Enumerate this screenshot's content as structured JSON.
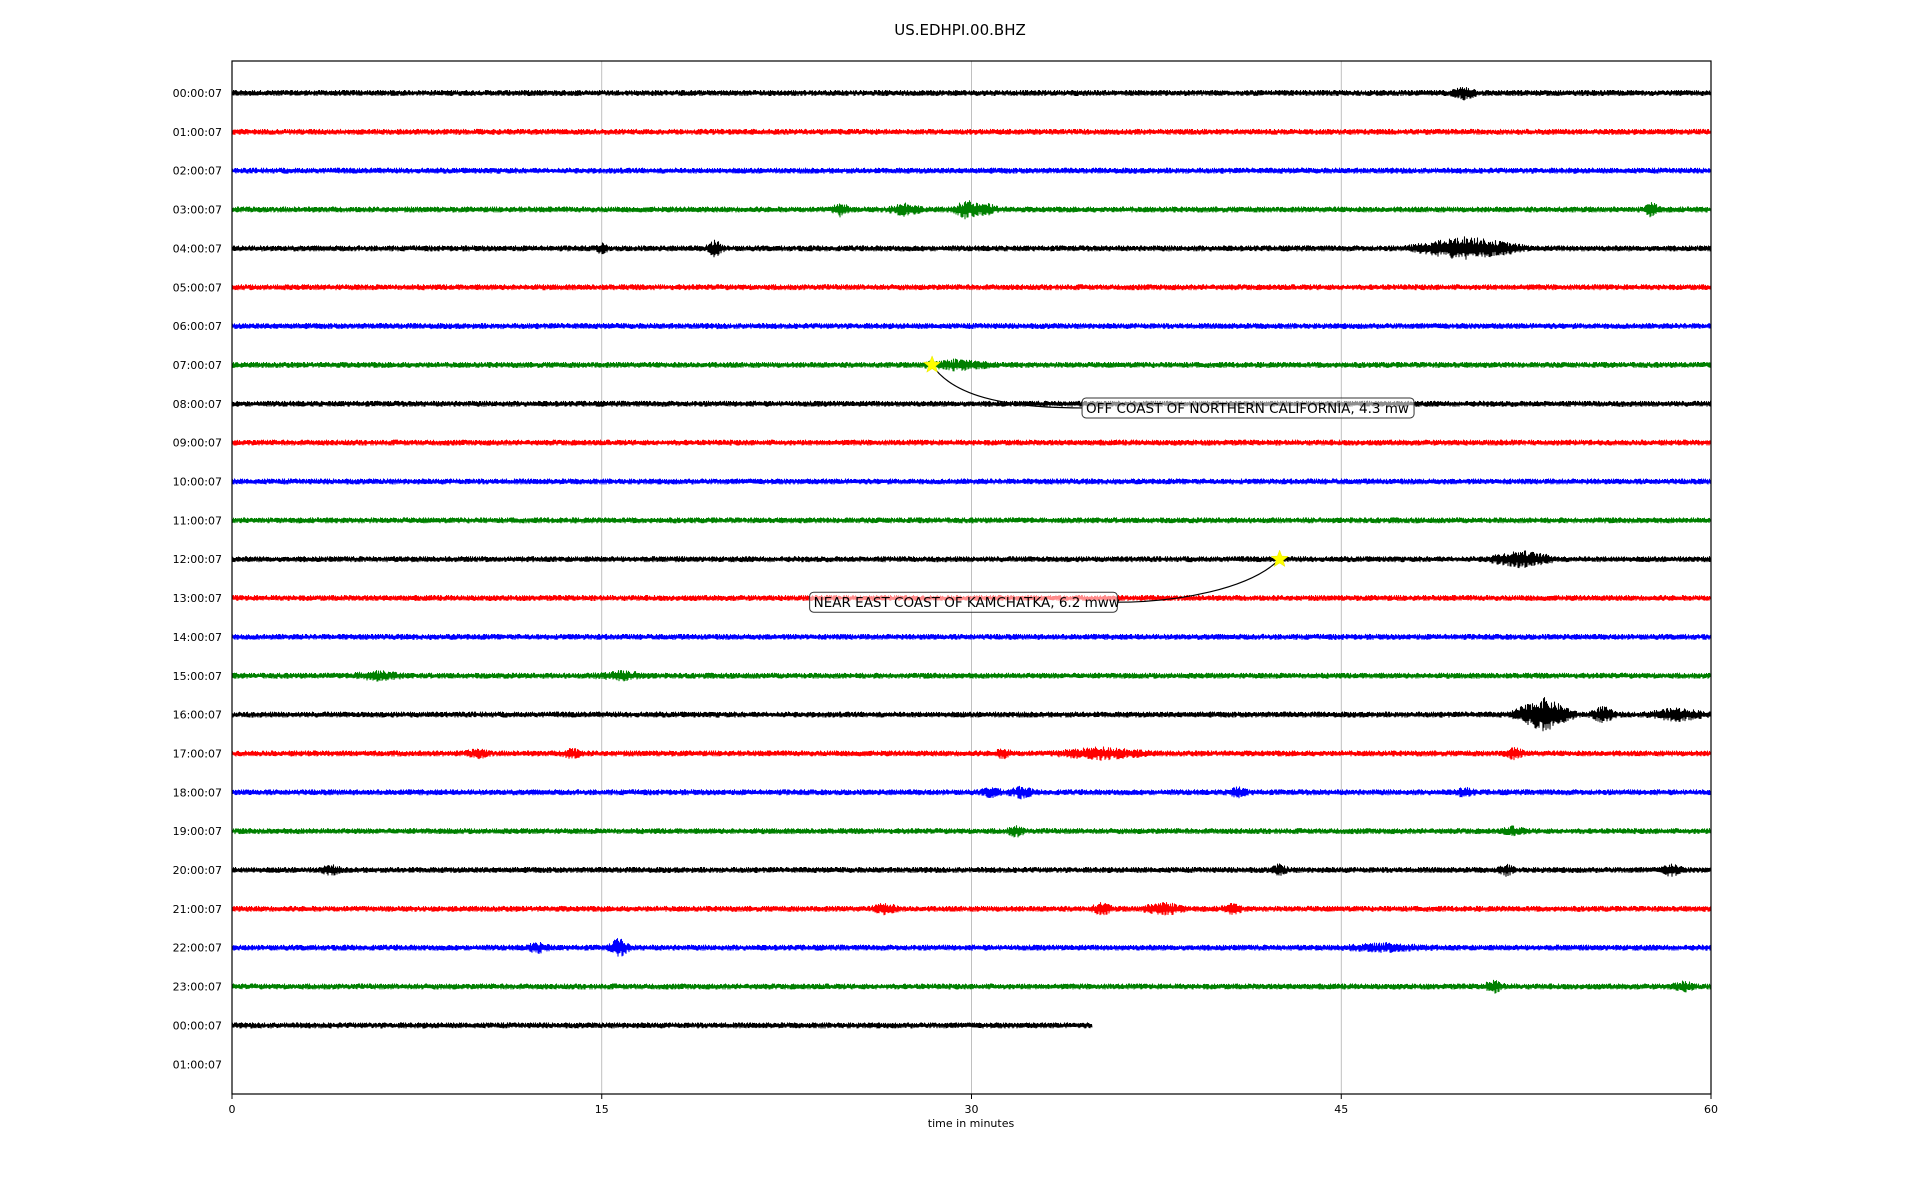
{
  "chart_data": {
    "type": "line",
    "title": "US.EDHPI.00.BHZ",
    "xlabel": "time in minutes",
    "ylabel": "",
    "xlim": [
      0,
      60
    ],
    "xticks": [
      0,
      15,
      30,
      45,
      60
    ],
    "xtick_labels": [
      "0",
      "15",
      "30",
      "45",
      "60"
    ],
    "grid": "vertical lines at x ticks",
    "trace_colors": [
      "#000000",
      "#ff0000",
      "#0000ff",
      "#008000"
    ],
    "row_labels": [
      "00:00:07",
      "01:00:07",
      "02:00:07",
      "03:00:07",
      "04:00:07",
      "05:00:07",
      "06:00:07",
      "07:00:07",
      "08:00:07",
      "09:00:07",
      "10:00:07",
      "11:00:07",
      "12:00:07",
      "13:00:07",
      "14:00:07",
      "15:00:07",
      "16:00:07",
      "17:00:07",
      "18:00:07",
      "19:00:07",
      "20:00:07",
      "21:00:07",
      "22:00:07",
      "23:00:07",
      "00:00:07",
      "01:00:07"
    ],
    "row_data_end_minutes": [
      60,
      60,
      60,
      60,
      60,
      60,
      60,
      60,
      60,
      60,
      60,
      60,
      60,
      60,
      60,
      60,
      60,
      60,
      60,
      60,
      60,
      60,
      60,
      60,
      34.9,
      0
    ],
    "events": [
      {
        "row": 7,
        "minute": 28.4,
        "label": "OFF COAST OF NORTHERN CALIFORNIA, 4.3 mw",
        "label_side": "right"
      },
      {
        "row": 12,
        "minute": 42.5,
        "label": "NEAR EAST COAST OF KAMCHATKA, 6.2 mww",
        "label_side": "left"
      }
    ],
    "bursts": [
      {
        "row": 0,
        "minute": 50.0,
        "amp": 1.6,
        "dur": 0.6
      },
      {
        "row": 3,
        "minute": 24.7,
        "amp": 1.8,
        "dur": 0.4
      },
      {
        "row": 3,
        "minute": 27.3,
        "amp": 1.6,
        "dur": 0.8
      },
      {
        "row": 3,
        "minute": 29.8,
        "amp": 2.6,
        "dur": 0.6
      },
      {
        "row": 3,
        "minute": 30.6,
        "amp": 1.4,
        "dur": 0.6
      },
      {
        "row": 3,
        "minute": 57.6,
        "amp": 2.0,
        "dur": 0.4
      },
      {
        "row": 4,
        "minute": 15.0,
        "amp": 1.2,
        "dur": 0.3
      },
      {
        "row": 4,
        "minute": 19.6,
        "amp": 2.4,
        "dur": 0.4
      },
      {
        "row": 4,
        "minute": 50.1,
        "amp": 3.2,
        "dur": 2.6
      },
      {
        "row": 7,
        "minute": 29.4,
        "amp": 1.3,
        "dur": 1.6
      },
      {
        "row": 12,
        "minute": 52.3,
        "amp": 2.2,
        "dur": 1.6
      },
      {
        "row": 15,
        "minute": 5.9,
        "amp": 1.0,
        "dur": 1.2
      },
      {
        "row": 15,
        "minute": 15.8,
        "amp": 1.0,
        "dur": 1.2
      },
      {
        "row": 16,
        "minute": 53.2,
        "amp": 5.0,
        "dur": 1.4
      },
      {
        "row": 16,
        "minute": 55.6,
        "amp": 2.2,
        "dur": 0.6
      },
      {
        "row": 16,
        "minute": 58.6,
        "amp": 1.6,
        "dur": 1.4
      },
      {
        "row": 17,
        "minute": 10.0,
        "amp": 1.0,
        "dur": 0.6
      },
      {
        "row": 17,
        "minute": 13.8,
        "amp": 1.3,
        "dur": 0.5
      },
      {
        "row": 17,
        "minute": 31.3,
        "amp": 1.2,
        "dur": 0.4
      },
      {
        "row": 17,
        "minute": 35.3,
        "amp": 1.5,
        "dur": 2.2
      },
      {
        "row": 17,
        "minute": 52.0,
        "amp": 1.4,
        "dur": 0.5
      },
      {
        "row": 18,
        "minute": 30.8,
        "amp": 1.3,
        "dur": 0.5
      },
      {
        "row": 18,
        "minute": 32.0,
        "amp": 1.5,
        "dur": 0.6
      },
      {
        "row": 18,
        "minute": 40.8,
        "amp": 1.2,
        "dur": 0.5
      },
      {
        "row": 18,
        "minute": 50.0,
        "amp": 1.0,
        "dur": 0.5
      },
      {
        "row": 19,
        "minute": 31.8,
        "amp": 1.4,
        "dur": 0.4
      },
      {
        "row": 19,
        "minute": 52.0,
        "amp": 1.0,
        "dur": 0.6
      },
      {
        "row": 20,
        "minute": 4.0,
        "amp": 1.2,
        "dur": 0.5
      },
      {
        "row": 20,
        "minute": 42.5,
        "amp": 1.4,
        "dur": 0.4
      },
      {
        "row": 20,
        "minute": 51.7,
        "amp": 1.3,
        "dur": 0.4
      },
      {
        "row": 20,
        "minute": 58.4,
        "amp": 1.6,
        "dur": 0.5
      },
      {
        "row": 21,
        "minute": 26.5,
        "amp": 1.5,
        "dur": 0.6
      },
      {
        "row": 21,
        "minute": 35.3,
        "amp": 1.6,
        "dur": 0.5
      },
      {
        "row": 21,
        "minute": 37.8,
        "amp": 1.7,
        "dur": 1.0
      },
      {
        "row": 21,
        "minute": 40.6,
        "amp": 1.2,
        "dur": 0.5
      },
      {
        "row": 22,
        "minute": 12.4,
        "amp": 1.2,
        "dur": 0.6
      },
      {
        "row": 22,
        "minute": 15.7,
        "amp": 2.6,
        "dur": 0.5
      },
      {
        "row": 22,
        "minute": 46.8,
        "amp": 0.9,
        "dur": 2.0
      },
      {
        "row": 23,
        "minute": 51.2,
        "amp": 1.5,
        "dur": 0.5
      },
      {
        "row": 23,
        "minute": 58.9,
        "amp": 1.1,
        "dur": 0.6
      }
    ]
  }
}
